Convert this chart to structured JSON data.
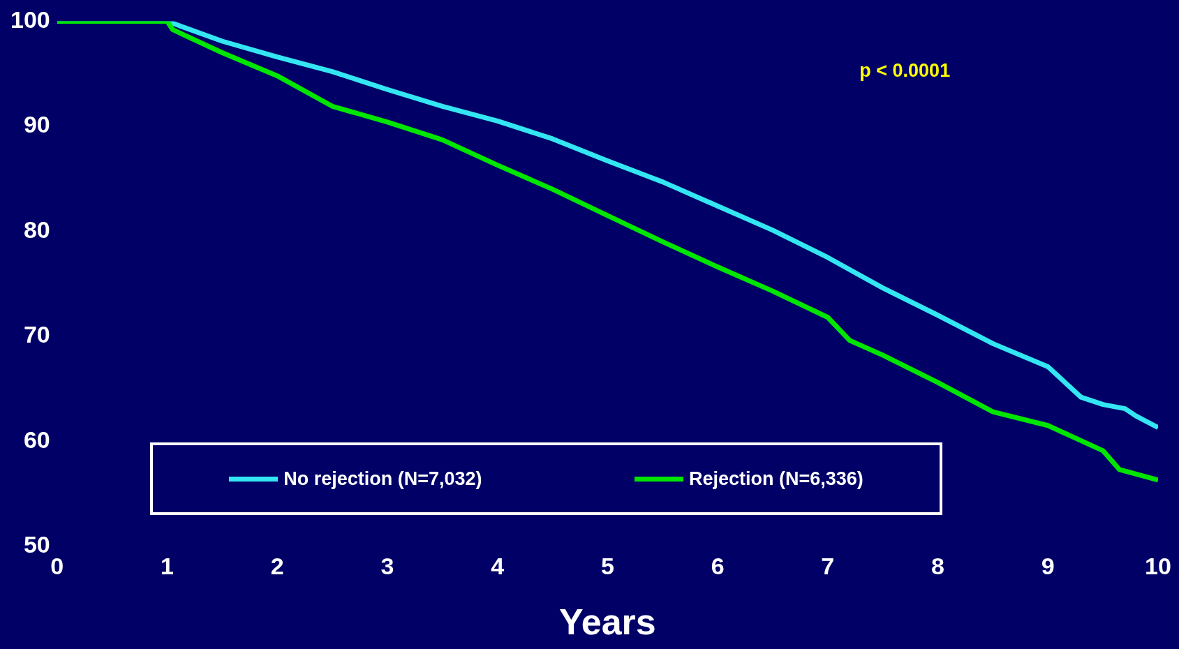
{
  "chart_data": {
    "type": "line",
    "xlabel": "Years",
    "annotations": [
      "p < 0.0001"
    ],
    "xlim": [
      0,
      10
    ],
    "xticks": [
      0,
      1,
      2,
      3,
      4,
      5,
      6,
      7,
      8,
      9,
      10
    ],
    "ylim": [
      50,
      100
    ],
    "yticks": [
      50,
      60,
      70,
      80,
      90,
      100
    ],
    "grid": false,
    "legend": "bottom",
    "marker": "none",
    "line_style": "solid",
    "series": [
      {
        "name": "No rejection (N=7,032)",
        "color": "#33e6f2",
        "x": [
          0,
          1,
          1.5,
          2,
          2.5,
          3,
          3.5,
          4,
          4.5,
          5,
          5.5,
          6,
          6.5,
          7,
          7.5,
          8,
          8.5,
          9,
          9.3,
          9.5,
          9.7,
          9.8,
          10
        ],
        "values": [
          100,
          100,
          98.1,
          96.6,
          95.2,
          93.5,
          91.9,
          90.5,
          88.8,
          86.7,
          84.7,
          82.4,
          80.1,
          77.5,
          74.6,
          72.0,
          69.3,
          67.1,
          64.2,
          63.5,
          63.1,
          62.4,
          61.3
        ]
      },
      {
        "name": "Rejection (N=6,336)",
        "color": "#00e600",
        "x": [
          0,
          1,
          1.05,
          1.5,
          2,
          2.5,
          3,
          3.5,
          4,
          4.5,
          5,
          5.5,
          6,
          6.5,
          7,
          7.2,
          7.5,
          8,
          8.5,
          9,
          9.5,
          9.65,
          10
        ],
        "values": [
          100,
          100,
          99.2,
          97.0,
          94.8,
          91.9,
          90.4,
          88.7,
          86.3,
          84.0,
          81.5,
          79.0,
          76.6,
          74.3,
          71.8,
          69.6,
          68.2,
          65.6,
          62.8,
          61.5,
          59.1,
          57.3,
          56.3
        ]
      }
    ]
  }
}
